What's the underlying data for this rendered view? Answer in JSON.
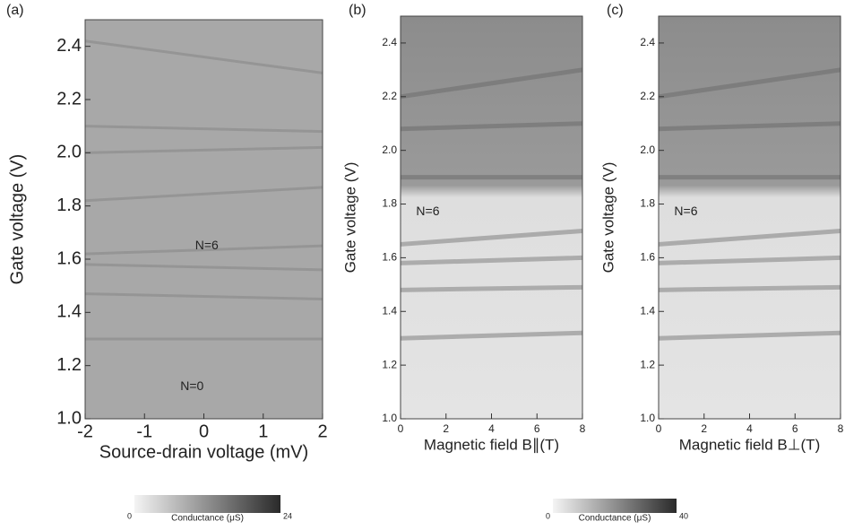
{
  "chart_data": [
    {
      "type": "heatmap",
      "panel_label": "(a)",
      "xlabel": "Source-drain voltage (mV)",
      "ylabel": "Gate voltage (V)",
      "xlim": [
        -2,
        2
      ],
      "xticks": [
        -2,
        -1,
        0,
        1,
        2
      ],
      "ylim": [
        1.0,
        2.5
      ],
      "yticks": [
        {
          "value": 1.0,
          "label": "1.0"
        },
        1.2,
        1.4,
        1.6,
        1.8,
        {
          "value": 2.0,
          "label": "2.0"
        },
        2.2,
        2.4
      ],
      "annotations": [
        "N=6",
        "N=0"
      ],
      "colorbar": {
        "label": "Conductance (μS)",
        "lim": [
          0,
          24
        ],
        "ticks": [
          0,
          24
        ]
      }
    },
    {
      "type": "heatmap",
      "panel_label": "(b)",
      "xlabel": "Magnetic field B∥(T)",
      "ylabel": "Gate voltage (V)",
      "xlim": [
        0,
        8
      ],
      "xticks": [
        0,
        2,
        4,
        6,
        8
      ],
      "ylim": [
        1.0,
        2.5
      ],
      "yticks": [
        {
          "value": 1.0,
          "label": "1.0"
        },
        1.2,
        1.4,
        1.6,
        1.8,
        {
          "value": 2.0,
          "label": "2.0"
        },
        2.2,
        2.4
      ],
      "annotations": [
        "N=6"
      ],
      "colorbar": {
        "label": "Conductance (μS)",
        "lim": [
          0,
          40
        ],
        "ticks": [
          0,
          40
        ]
      }
    },
    {
      "type": "heatmap",
      "panel_label": "(c)",
      "xlabel": "Magnetic field B⊥(T)",
      "ylabel": "Gate voltage (V)",
      "xlim": [
        0,
        8
      ],
      "xticks": [
        0,
        2,
        4,
        6,
        8
      ],
      "ylim": [
        1.0,
        2.5
      ],
      "yticks": [
        {
          "value": 1.0,
          "label": "1.0"
        },
        1.2,
        1.4,
        1.6,
        1.8,
        {
          "value": 2.0,
          "label": "2.0"
        },
        2.2,
        2.4
      ],
      "annotations": [
        "N=6"
      ]
    }
  ]
}
